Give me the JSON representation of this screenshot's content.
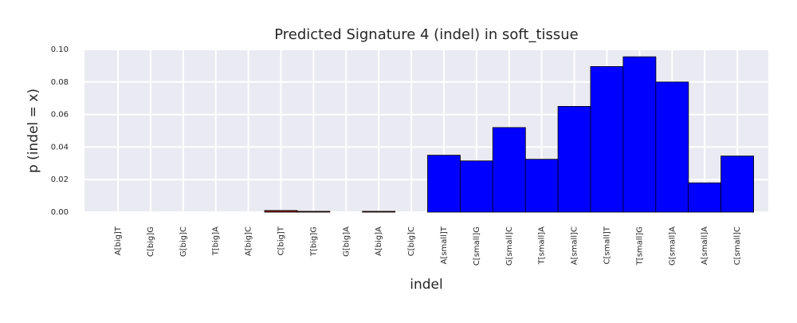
{
  "chart_data": {
    "type": "bar",
    "title": "Predicted Signature 4 (indel) in soft_tissue",
    "xlabel": "indel",
    "ylabel": "p (indel = x)",
    "ylim": [
      0,
      0.1
    ],
    "yticks": [
      "0.00",
      "0.02",
      "0.04",
      "0.06",
      "0.08",
      "0.10"
    ],
    "grid": true,
    "categories": [
      "A[big]T",
      "C[big]G",
      "G[big]C",
      "T[big]A",
      "A[big]C",
      "C[big]T",
      "T[big]G",
      "G[big]A",
      "A[big]A",
      "C[big]C",
      "A[small]T",
      "C[small]G",
      "G[small]C",
      "T[small]A",
      "A[small]C",
      "C[small]T",
      "T[small]G",
      "G[small]A",
      "A[small]A",
      "C[small]C"
    ],
    "values": [
      0,
      0,
      0,
      0,
      0,
      0.001,
      0.0005,
      0,
      0.0005,
      0,
      0.035,
      0.0315,
      0.052,
      0.0325,
      0.065,
      0.0895,
      0.0955,
      0.08,
      0.018,
      0.0345
    ],
    "bar_colors": [
      "#8b0000",
      "#8b0000",
      "#8b0000",
      "#8b0000",
      "#8b0000",
      "#8b0000",
      "#8b0000",
      "#8b0000",
      "#8b0000",
      "#8b0000",
      "#0000ff",
      "#0000ff",
      "#0000ff",
      "#0000ff",
      "#0000ff",
      "#0000ff",
      "#0000ff",
      "#0000ff",
      "#0000ff",
      "#0000ff"
    ],
    "background_color": "#eaeaf2"
  }
}
